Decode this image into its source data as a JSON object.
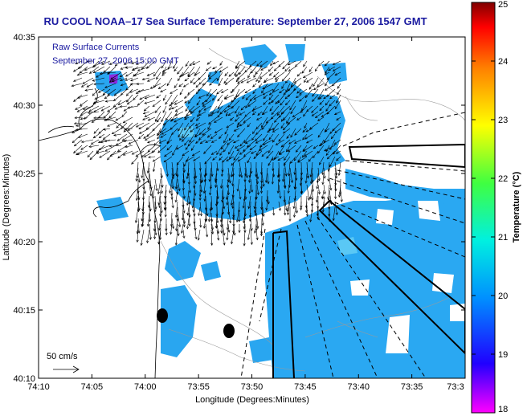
{
  "title": "RU COOL  NOAA–17  Sea Surface Temperature:  September 27, 2006 1547 GMT",
  "overlay": {
    "line1": "Raw Surface Currents",
    "line2": "September 27, 2006 15:00 GMT"
  },
  "scale_label": "50 cm/s",
  "axes": {
    "xlabel": "Longitude (Degrees:Minutes)",
    "ylabel": "Latitude (Degrees:Minutes)",
    "x_ticks": [
      "74:10",
      "74:05",
      "74:00",
      "73:55",
      "73:50",
      "73:45",
      "73:40",
      "73:35",
      "73:3"
    ],
    "y_ticks": [
      "40:35",
      "40:30",
      "40:25",
      "40:20",
      "40:15",
      "40:10"
    ],
    "xlim": [
      "74:10 W",
      "73:30 W"
    ],
    "ylim": [
      "40:10 N",
      "40:35 N"
    ]
  },
  "colorbar": {
    "label": "Temperature (°C)",
    "ticks": [
      "25",
      "24",
      "23",
      "22",
      "21",
      "20",
      "19",
      "18"
    ],
    "range": [
      18,
      25
    ],
    "colors": [
      "#ff00ff",
      "#0000ff",
      "#00a0ff",
      "#00ffd0",
      "#60ff00",
      "#ffff00",
      "#ff8000",
      "#ff0000",
      "#800000"
    ]
  },
  "colors": {
    "sst_main": "#29a6f0",
    "sst_warm": "#5ac8f5",
    "sst_hot": "#8a2be2",
    "title": "#1a1aa0"
  }
}
